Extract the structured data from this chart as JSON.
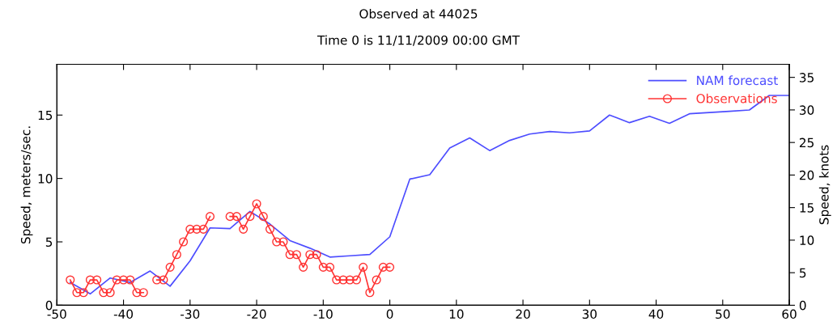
{
  "chart_data": {
    "type": "line",
    "title": "Observed at 44025",
    "subtitle": "Time 0 is 11/11/2009 00:00 GMT",
    "ylabel": "Speed, meters/sec.",
    "y2label": "Speed, knots",
    "xlim": [
      -50,
      60
    ],
    "xticks": [
      -50,
      -40,
      -30,
      -20,
      -10,
      0,
      10,
      20,
      30,
      40,
      50,
      60
    ],
    "ylim": [
      0,
      19
    ],
    "yticks": [
      0,
      5,
      10,
      15
    ],
    "y2lim": [
      0,
      37
    ],
    "y2ticks": [
      0,
      5,
      10,
      15,
      20,
      25,
      30,
      35
    ],
    "grid": false,
    "legend": "top right",
    "series": [
      {
        "name": "NAM forecast",
        "color": "#4d4dff",
        "marker": "none",
        "x": [
          -48,
          -45,
          -42,
          -39,
          -36,
          -33,
          -30,
          -27,
          -24,
          -21,
          -18,
          -15,
          -12,
          -9,
          -6,
          -3,
          0,
          3,
          6,
          9,
          12,
          15,
          18,
          21,
          24,
          27,
          30,
          33,
          36,
          39,
          42,
          45,
          48,
          51,
          54,
          57,
          60
        ],
        "values": [
          1.8,
          0.9,
          2.15,
          1.8,
          2.7,
          1.5,
          3.5,
          6.1,
          6.05,
          7.4,
          6.4,
          5.1,
          4.5,
          3.8,
          3.9,
          4.0,
          5.4,
          9.95,
          10.3,
          12.4,
          13.2,
          12.2,
          13.0,
          13.5,
          13.7,
          13.6,
          13.75,
          15.0,
          14.4,
          14.9,
          14.35,
          15.1,
          15.2,
          15.3,
          15.4,
          16.55,
          16.55
        ]
      },
      {
        "name": "Observations",
        "color": "#ff3333",
        "marker": "circle",
        "x": [
          -48,
          -47,
          -46,
          -45,
          -44,
          -43,
          -42,
          -41,
          -40,
          -39,
          -38,
          -37,
          -36,
          -35,
          -34,
          -33,
          -32,
          -31,
          -30,
          -29,
          -28,
          -27,
          -26,
          -25,
          -24,
          -23,
          -22,
          -21,
          -20,
          -19,
          -18,
          -17,
          -16,
          -15,
          -14,
          -13,
          -12,
          -11,
          -10,
          -9,
          -8,
          -7,
          -6,
          -5,
          -4,
          -3,
          -2,
          -1,
          0
        ],
        "values": [
          2,
          1,
          1,
          2,
          2,
          1,
          1,
          2,
          2,
          2,
          1,
          1,
          null,
          2,
          2,
          3,
          4,
          5,
          6,
          6,
          6,
          7,
          null,
          null,
          7,
          7,
          6,
          7,
          8,
          7,
          6,
          5,
          5,
          4,
          4,
          3,
          4,
          4,
          3,
          3,
          2,
          2,
          2,
          2,
          3,
          1,
          2,
          3,
          3
        ]
      }
    ]
  }
}
